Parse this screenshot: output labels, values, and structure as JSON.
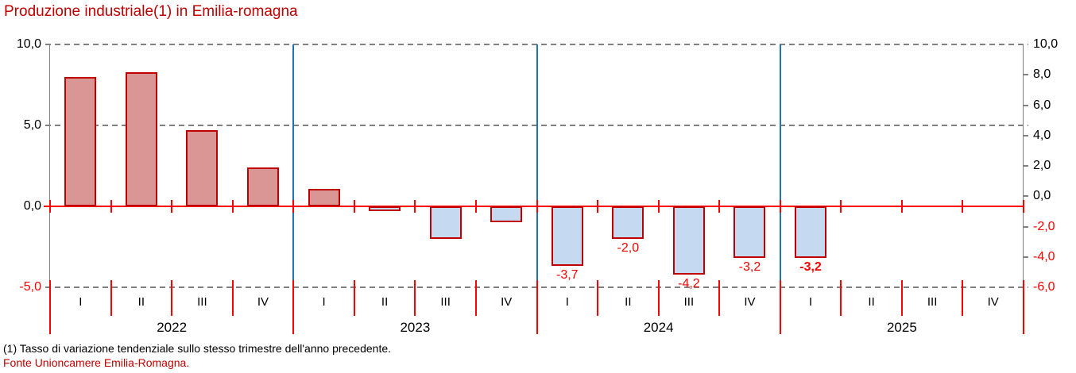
{
  "title": "Produzione industriale(1) in Emilia-romagna",
  "footnote": "(1) Tasso di variazione tendenziale sullo stesso trimestre dell'anno precedente.",
  "source": "Fonte Unioncamere Emilia-Romagna.",
  "colors": {
    "title_red": "#C00000",
    "bright_red": "#FF0000",
    "bar_positive_fill": "#D99694",
    "bar_negative_fill": "#C5D9F1",
    "bar_border": "#C00000",
    "year_separator_blue": "#1F74B4",
    "axis_gray": "#808080",
    "text_black": "#000000"
  },
  "chart_data": {
    "type": "bar",
    "title": "Produzione industriale(1) in Emilia-romagna",
    "xlabel": "",
    "ylabel": "",
    "grid": "dashed horizontal at 10, 5, -5 (left scale); solid red zero line",
    "left_axis": {
      "range": [
        -5,
        10
      ],
      "tick_values": [
        10,
        5,
        0,
        -5
      ],
      "tick_labels": [
        "10,0",
        "5,0",
        "0,0",
        "-5,0"
      ]
    },
    "right_axis": {
      "range": [
        -6,
        10
      ],
      "tick_values": [
        10,
        8,
        6,
        4,
        2,
        0,
        -2,
        -4,
        -6
      ],
      "tick_labels": [
        "10,0",
        "8,0",
        "6,0",
        "4,0",
        "2,0",
        "0,0",
        "-2,0",
        "-4,0",
        "-6,0"
      ]
    },
    "years": [
      {
        "label": "2022",
        "quarters": [
          "I",
          "II",
          "III",
          "IV"
        ],
        "values": [
          8.0,
          8.3,
          4.7,
          2.4
        ],
        "data_labels": [
          null,
          null,
          null,
          null
        ],
        "bold_labels": [
          false,
          false,
          false,
          false
        ]
      },
      {
        "label": "2023",
        "quarters": [
          "I",
          "II",
          "III",
          "IV"
        ],
        "values": [
          1.1,
          -0.3,
          -2.0,
          -1.0
        ],
        "data_labels": [
          null,
          null,
          null,
          null
        ],
        "bold_labels": [
          false,
          false,
          false,
          false
        ]
      },
      {
        "label": "2024",
        "quarters": [
          "I",
          "II",
          "III",
          "IV"
        ],
        "values": [
          -3.7,
          -2.0,
          -4.2,
          -3.2
        ],
        "data_labels": [
          "-3,7",
          "-2,0",
          "-4,2",
          "-3,2"
        ],
        "bold_labels": [
          false,
          false,
          false,
          false
        ]
      },
      {
        "label": "2025",
        "quarters": [
          "I",
          "II",
          "III",
          "IV"
        ],
        "values": [
          -3.2,
          null,
          null,
          null
        ],
        "data_labels": [
          "-3,2",
          null,
          null,
          null
        ],
        "bold_labels": [
          true,
          false,
          false,
          false
        ]
      }
    ]
  }
}
